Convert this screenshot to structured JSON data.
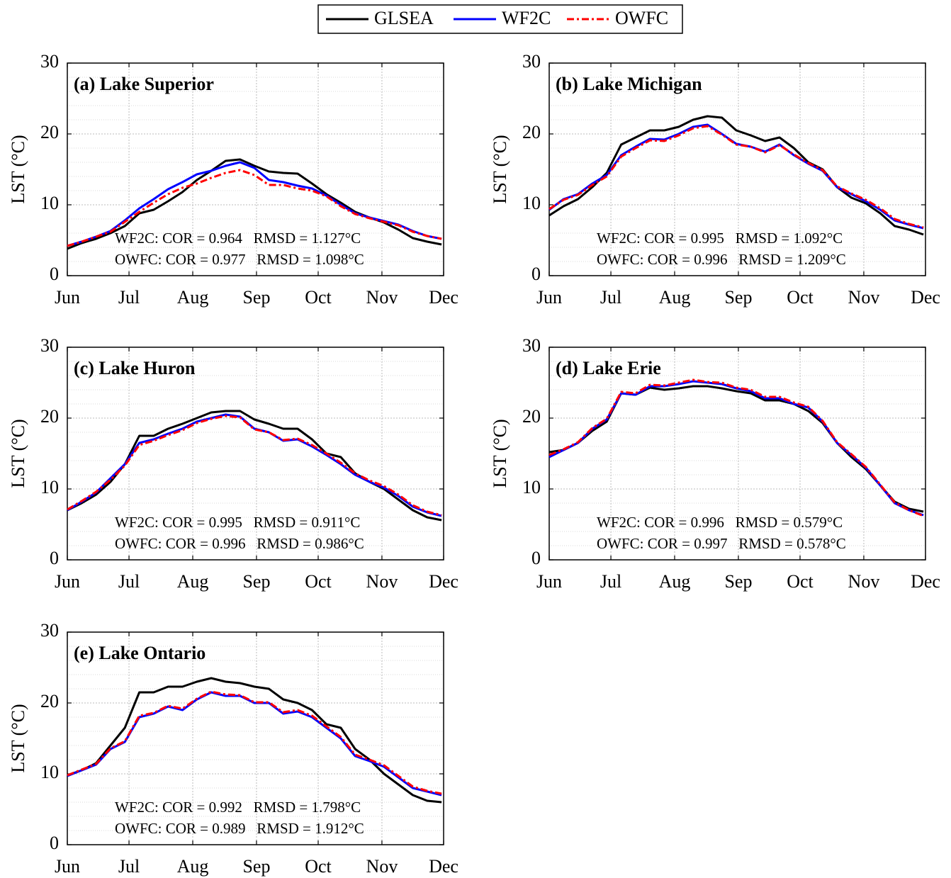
{
  "chart_data": [
    {
      "type": "line",
      "title": "(a) Lake Superior",
      "ylabel": "LST (°C)",
      "annotations": [
        "WF2C: COR = 0.964   RMSD = 1.127°C",
        "OWFC: COR = 0.977   RMSD = 1.098°C"
      ],
      "x": [
        0,
        7,
        14,
        21,
        28,
        35,
        42,
        49,
        56,
        63,
        70,
        77,
        84,
        91,
        98,
        105,
        112,
        119,
        126,
        133,
        140,
        147,
        154,
        161,
        168,
        175,
        182
      ],
      "xlim": [
        0,
        183
      ],
      "xticks": [
        {
          "value": 0,
          "label": "Jun"
        },
        {
          "value": 30,
          "label": "Jul"
        },
        {
          "value": 61,
          "label": "Aug"
        },
        {
          "value": 92,
          "label": "Sep"
        },
        {
          "value": 122,
          "label": "Oct"
        },
        {
          "value": 153,
          "label": "Nov"
        },
        {
          "value": 183,
          "label": "Dec"
        }
      ],
      "ylim": [
        0,
        30
      ],
      "yticks": [
        0,
        10,
        20,
        30
      ],
      "grid": true,
      "series": [
        {
          "name": "GLSEA",
          "color": "#000000",
          "linestyle": "solid",
          "values": [
            3.8,
            4.6,
            5.2,
            6.0,
            7.0,
            8.8,
            9.3,
            10.5,
            11.8,
            13.5,
            14.8,
            16.2,
            16.4,
            15.5,
            14.7,
            14.5,
            14.4,
            13.0,
            11.5,
            10.3,
            9.0,
            8.2,
            7.5,
            6.5,
            5.3,
            4.8,
            4.4
          ]
        },
        {
          "name": "WF2C",
          "color": "#0000ff",
          "linestyle": "solid",
          "values": [
            4.2,
            4.8,
            5.5,
            6.3,
            7.8,
            9.5,
            10.8,
            12.2,
            13.2,
            14.3,
            14.8,
            15.5,
            16.0,
            15.2,
            13.5,
            13.2,
            12.7,
            12.3,
            11.3,
            10.0,
            8.8,
            8.2,
            7.7,
            7.2,
            6.3,
            5.6,
            5.2
          ]
        },
        {
          "name": "OWFC",
          "color": "#ff0000",
          "linestyle": "dashdot",
          "values": [
            4.2,
            4.8,
            5.5,
            6.2,
            7.6,
            9.0,
            10.3,
            11.5,
            12.4,
            13.0,
            13.8,
            14.5,
            14.9,
            14.2,
            12.8,
            12.8,
            12.3,
            12.0,
            11.2,
            9.8,
            8.7,
            8.1,
            7.6,
            7.1,
            6.2,
            5.6,
            5.2
          ]
        }
      ]
    },
    {
      "type": "line",
      "title": "(b) Lake Michigan",
      "ylabel": "LST (°C)",
      "annotations": [
        "WF2C: COR = 0.995   RMSD = 1.092°C",
        "OWFC: COR = 0.996   RMSD = 1.209°C"
      ],
      "x": [
        0,
        7,
        14,
        21,
        28,
        35,
        42,
        49,
        56,
        63,
        70,
        77,
        84,
        91,
        98,
        105,
        112,
        119,
        126,
        133,
        140,
        147,
        154,
        161,
        168,
        175,
        182
      ],
      "xlim": [
        0,
        183
      ],
      "xticks": [
        {
          "value": 0,
          "label": "Jun"
        },
        {
          "value": 30,
          "label": "Jul"
        },
        {
          "value": 61,
          "label": "Aug"
        },
        {
          "value": 92,
          "label": "Sep"
        },
        {
          "value": 122,
          "label": "Oct"
        },
        {
          "value": 153,
          "label": "Nov"
        },
        {
          "value": 183,
          "label": "Dec"
        }
      ],
      "ylim": [
        0,
        30
      ],
      "yticks": [
        0,
        10,
        20,
        30
      ],
      "grid": true,
      "series": [
        {
          "name": "GLSEA",
          "color": "#000000",
          "linestyle": "solid",
          "values": [
            8.5,
            9.8,
            10.8,
            12.5,
            14.5,
            18.5,
            19.5,
            20.5,
            20.5,
            21.0,
            22.0,
            22.5,
            22.3,
            20.5,
            19.8,
            19.0,
            19.5,
            18.0,
            16.0,
            15.0,
            12.5,
            11.0,
            10.2,
            8.8,
            7.0,
            6.5,
            5.8
          ]
        },
        {
          "name": "WF2C",
          "color": "#0000ff",
          "linestyle": "solid",
          "values": [
            9.3,
            10.8,
            11.5,
            13.0,
            14.2,
            17.0,
            18.2,
            19.3,
            19.2,
            20.0,
            21.0,
            21.3,
            20.0,
            18.6,
            18.2,
            17.5,
            18.5,
            17.0,
            15.8,
            14.8,
            12.5,
            11.5,
            10.5,
            9.3,
            7.8,
            7.2,
            6.7
          ]
        },
        {
          "name": "OWFC",
          "color": "#ff0000",
          "linestyle": "dashdot",
          "values": [
            9.4,
            10.7,
            11.4,
            12.8,
            14.0,
            16.8,
            18.0,
            19.1,
            19.0,
            19.8,
            20.8,
            21.1,
            19.9,
            18.5,
            18.2,
            17.4,
            18.4,
            17.1,
            15.9,
            14.9,
            12.6,
            11.6,
            10.7,
            9.5,
            8.0,
            7.3,
            6.8
          ]
        }
      ]
    },
    {
      "type": "line",
      "title": "(c) Lake Huron",
      "ylabel": "LST (°C)",
      "annotations": [
        "WF2C: COR = 0.995   RMSD = 0.911°C",
        "OWFC: COR = 0.996   RMSD = 0.986°C"
      ],
      "x": [
        0,
        7,
        14,
        21,
        28,
        35,
        42,
        49,
        56,
        63,
        70,
        77,
        84,
        91,
        98,
        105,
        112,
        119,
        126,
        133,
        140,
        147,
        154,
        161,
        168,
        175,
        182
      ],
      "xlim": [
        0,
        183
      ],
      "xticks": [
        {
          "value": 0,
          "label": "Jun"
        },
        {
          "value": 30,
          "label": "Jul"
        },
        {
          "value": 61,
          "label": "Aug"
        },
        {
          "value": 92,
          "label": "Sep"
        },
        {
          "value": 122,
          "label": "Oct"
        },
        {
          "value": 153,
          "label": "Nov"
        },
        {
          "value": 183,
          "label": "Dec"
        }
      ],
      "ylim": [
        0,
        30
      ],
      "yticks": [
        0,
        10,
        20,
        30
      ],
      "grid": true,
      "series": [
        {
          "name": "GLSEA",
          "color": "#000000",
          "linestyle": "solid",
          "values": [
            7.0,
            8.0,
            9.2,
            11.0,
            13.5,
            17.5,
            17.5,
            18.5,
            19.2,
            20.0,
            20.8,
            21.0,
            21.0,
            19.8,
            19.2,
            18.5,
            18.5,
            17.0,
            15.0,
            14.5,
            12.2,
            11.0,
            10.0,
            8.5,
            7.0,
            6.0,
            5.6
          ]
        },
        {
          "name": "WF2C",
          "color": "#0000ff",
          "linestyle": "solid",
          "values": [
            7.0,
            8.2,
            9.5,
            11.5,
            13.5,
            16.5,
            17.0,
            17.8,
            18.5,
            19.5,
            20.0,
            20.5,
            20.2,
            18.5,
            18.0,
            16.8,
            17.0,
            16.0,
            14.8,
            13.5,
            12.0,
            11.0,
            10.2,
            9.0,
            7.5,
            6.7,
            6.2
          ]
        },
        {
          "name": "OWFC",
          "color": "#ff0000",
          "linestyle": "dashdot",
          "values": [
            7.1,
            8.3,
            9.6,
            11.3,
            13.3,
            16.2,
            16.8,
            17.6,
            18.3,
            19.3,
            19.9,
            20.3,
            20.1,
            18.4,
            18.0,
            16.9,
            17.1,
            16.2,
            15.0,
            13.7,
            12.2,
            11.2,
            10.4,
            9.2,
            7.7,
            6.8,
            6.3
          ]
        }
      ]
    },
    {
      "type": "line",
      "title": "(d) Lake Erie",
      "ylabel": "LST (°C)",
      "annotations": [
        "WF2C: COR = 0.996   RMSD = 0.579°C",
        "OWFC: COR = 0.997   RMSD = 0.578°C"
      ],
      "x": [
        0,
        7,
        14,
        21,
        28,
        35,
        42,
        49,
        56,
        63,
        70,
        77,
        84,
        91,
        98,
        105,
        112,
        119,
        126,
        133,
        140,
        147,
        154,
        161,
        168,
        175,
        182
      ],
      "xlim": [
        0,
        183
      ],
      "xticks": [
        {
          "value": 0,
          "label": "Jun"
        },
        {
          "value": 30,
          "label": "Jul"
        },
        {
          "value": 61,
          "label": "Aug"
        },
        {
          "value": 92,
          "label": "Sep"
        },
        {
          "value": 122,
          "label": "Oct"
        },
        {
          "value": 153,
          "label": "Nov"
        },
        {
          "value": 183,
          "label": "Dec"
        }
      ],
      "ylim": [
        0,
        30
      ],
      "yticks": [
        0,
        10,
        20,
        30
      ],
      "grid": true,
      "series": [
        {
          "name": "GLSEA",
          "color": "#000000",
          "linestyle": "solid",
          "values": [
            15.2,
            15.5,
            16.5,
            18.2,
            19.5,
            23.5,
            23.3,
            24.3,
            24.0,
            24.2,
            24.5,
            24.5,
            24.2,
            23.8,
            23.5,
            22.5,
            22.5,
            22.0,
            21.0,
            19.3,
            16.5,
            14.5,
            12.8,
            10.5,
            8.2,
            7.2,
            6.8
          ]
        },
        {
          "name": "WF2C",
          "color": "#0000ff",
          "linestyle": "solid",
          "values": [
            14.5,
            15.5,
            16.5,
            18.5,
            19.8,
            23.5,
            23.3,
            24.5,
            24.5,
            24.8,
            25.2,
            25.0,
            24.8,
            24.2,
            23.8,
            22.8,
            22.8,
            22.0,
            21.5,
            19.5,
            16.5,
            14.8,
            13.0,
            10.5,
            8.0,
            7.0,
            6.3
          ]
        },
        {
          "name": "OWFC",
          "color": "#ff0000",
          "linestyle": "dashdot",
          "values": [
            14.8,
            15.6,
            16.6,
            18.6,
            19.9,
            23.7,
            23.5,
            24.7,
            24.6,
            25.0,
            25.4,
            25.1,
            25.0,
            24.3,
            24.0,
            23.0,
            23.0,
            22.2,
            21.6,
            19.6,
            16.6,
            14.9,
            13.1,
            10.6,
            8.1,
            7.0,
            6.2
          ]
        }
      ]
    },
    {
      "type": "line",
      "title": "(e) Lake Ontario",
      "ylabel": "LST (°C)",
      "annotations": [
        "WF2C: COR = 0.992   RMSD = 1.798°C",
        "OWFC: COR = 0.989   RMSD = 1.912°C"
      ],
      "x": [
        0,
        7,
        14,
        21,
        28,
        35,
        42,
        49,
        56,
        63,
        70,
        77,
        84,
        91,
        98,
        105,
        112,
        119,
        126,
        133,
        140,
        147,
        154,
        161,
        168,
        175,
        182
      ],
      "xlim": [
        0,
        183
      ],
      "xticks": [
        {
          "value": 0,
          "label": "Jun"
        },
        {
          "value": 30,
          "label": "Jul"
        },
        {
          "value": 61,
          "label": "Aug"
        },
        {
          "value": 92,
          "label": "Sep"
        },
        {
          "value": 122,
          "label": "Oct"
        },
        {
          "value": 153,
          "label": "Nov"
        },
        {
          "value": 183,
          "label": "Dec"
        }
      ],
      "ylim": [
        0,
        30
      ],
      "yticks": [
        0,
        10,
        20,
        30
      ],
      "grid": true,
      "series": [
        {
          "name": "GLSEA",
          "color": "#000000",
          "linestyle": "solid",
          "values": [
            9.8,
            10.5,
            11.5,
            14.0,
            16.5,
            21.5,
            21.5,
            22.3,
            22.3,
            23.0,
            23.5,
            23.0,
            22.8,
            22.3,
            22.0,
            20.5,
            20.0,
            19.0,
            17.0,
            16.5,
            13.5,
            12.0,
            10.0,
            8.5,
            7.0,
            6.2,
            6.0
          ]
        },
        {
          "name": "WF2C",
          "color": "#0000ff",
          "linestyle": "solid",
          "values": [
            9.7,
            10.5,
            11.3,
            13.5,
            14.5,
            18.0,
            18.5,
            19.5,
            19.0,
            20.5,
            21.5,
            21.0,
            21.0,
            20.0,
            20.0,
            18.5,
            18.8,
            18.0,
            16.5,
            15.0,
            12.5,
            11.8,
            11.0,
            9.5,
            8.0,
            7.5,
            7.0
          ]
        },
        {
          "name": "OWFC",
          "color": "#ff0000",
          "linestyle": "dashdot",
          "values": [
            9.8,
            10.6,
            11.4,
            13.6,
            14.6,
            18.2,
            18.6,
            19.6,
            19.2,
            20.6,
            21.6,
            21.2,
            21.1,
            20.1,
            20.1,
            18.7,
            19.0,
            18.2,
            16.7,
            15.2,
            12.7,
            12.0,
            11.2,
            9.7,
            8.2,
            7.6,
            7.2
          ]
        }
      ]
    }
  ]
}
